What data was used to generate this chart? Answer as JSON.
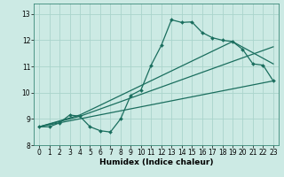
{
  "xlabel": "Humidex (Indice chaleur)",
  "bg_color": "#cceae4",
  "grid_color": "#aad4cc",
  "line_color": "#1a6e5e",
  "xlim": [
    -0.5,
    23.5
  ],
  "ylim": [
    8.0,
    13.4
  ],
  "xticks": [
    0,
    1,
    2,
    3,
    4,
    5,
    6,
    7,
    8,
    9,
    10,
    11,
    12,
    13,
    14,
    15,
    16,
    17,
    18,
    19,
    20,
    21,
    22,
    23
  ],
  "yticks": [
    8,
    9,
    10,
    11,
    12,
    13
  ],
  "line1_x": [
    0,
    1,
    2,
    3,
    4,
    5,
    6,
    7,
    8,
    9,
    10,
    11,
    12,
    13,
    14,
    15,
    16,
    17,
    18,
    19,
    20,
    21,
    22,
    23
  ],
  "line1_y": [
    8.7,
    8.7,
    8.85,
    9.15,
    9.1,
    8.7,
    8.55,
    8.5,
    9.0,
    9.9,
    10.1,
    11.05,
    11.8,
    12.78,
    12.68,
    12.7,
    12.3,
    12.1,
    12.0,
    11.95,
    11.65,
    11.1,
    11.05,
    10.45
  ],
  "line2_x": [
    0,
    23
  ],
  "line2_y": [
    8.7,
    10.45
  ],
  "line3_x": [
    0,
    4,
    23
  ],
  "line3_y": [
    8.7,
    9.1,
    11.75
  ],
  "line4_x": [
    0,
    4,
    19,
    23
  ],
  "line4_y": [
    8.7,
    9.15,
    11.95,
    11.1
  ]
}
